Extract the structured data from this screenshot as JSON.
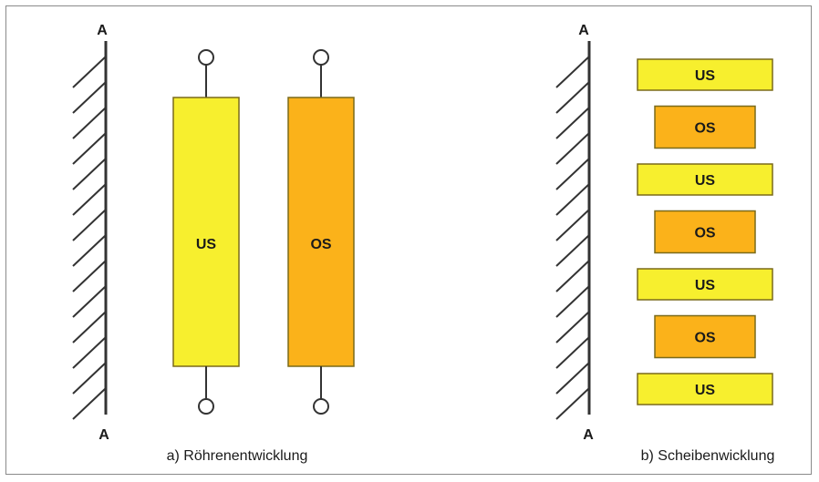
{
  "colors": {
    "us": "#f7ef2e",
    "os": "#fbb21a",
    "outline": "#7a6a1a",
    "line": "#333333"
  },
  "left": {
    "axis_top": "A",
    "axis_bottom": "A",
    "coil_us": "US",
    "coil_os": "OS",
    "caption": "a) Röhrenentwicklung"
  },
  "right": {
    "axis_top": "A",
    "axis_bottom": "A",
    "discs": [
      "US",
      "OS",
      "US",
      "OS",
      "US",
      "OS",
      "US"
    ],
    "caption": "b) Scheibenwicklung"
  }
}
